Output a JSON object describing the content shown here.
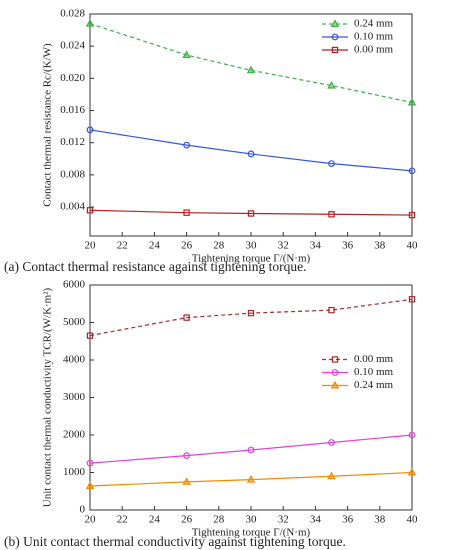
{
  "chart_data": [
    {
      "type": "line",
      "caption": "(a) Contact thermal resistance against tightening torque.",
      "xlabel": "Tightening torque Γ/(N·m)",
      "ylabel": "Contact thermal resistance Rc/(K/W)",
      "x": [
        20,
        26,
        30,
        35,
        40
      ],
      "xlim": [
        20,
        40
      ],
      "xticks": [
        20,
        22,
        24,
        26,
        28,
        30,
        32,
        34,
        36,
        38,
        40
      ],
      "ylim": [
        0.0004,
        0.028
      ],
      "yticks": [
        0.004,
        0.008,
        0.012,
        0.016,
        {
          "value": 0.02,
          "label": "0.020"
        },
        0.024,
        0.028
      ],
      "legend": "upper right",
      "series": [
        {
          "name": "0.24 mm",
          "color": "#3cb043",
          "dashed": true,
          "marker": "triangle",
          "values": [
            0.0268,
            0.0229,
            0.021,
            0.0191,
            0.017
          ]
        },
        {
          "name": "0.10 mm",
          "color": "#3355dd",
          "dashed": false,
          "marker": "circle",
          "values": [
            0.0136,
            0.0117,
            0.0106,
            0.0094,
            0.0085
          ]
        },
        {
          "name": "0.00 mm",
          "color": "#b22222",
          "dashed": false,
          "marker": "square",
          "values": [
            0.0036,
            0.0033,
            0.0032,
            0.0031,
            0.003
          ]
        }
      ]
    },
    {
      "type": "line",
      "caption": "(b) Unit contact thermal conductivity against tightening torque.",
      "xlabel": "Tightening torque Γ/(N·m)",
      "ylabel": "Unit contact thermal conductivity TCR/(W/K·m²)",
      "x": [
        20,
        26,
        30,
        35,
        40
      ],
      "xlim": [
        20,
        40
      ],
      "xticks": [
        20,
        22,
        24,
        26,
        28,
        30,
        32,
        34,
        36,
        38,
        40
      ],
      "ylim": [
        0,
        6000
      ],
      "yticks": [
        0,
        1000,
        2000,
        3000,
        4000,
        5000,
        6000
      ],
      "legend": "center right",
      "series": [
        {
          "name": "0.00 mm",
          "color": "#a52a2a",
          "dashed": true,
          "marker": "square",
          "values": [
            4650,
            5130,
            5250,
            5330,
            5620
          ]
        },
        {
          "name": "0.10 mm",
          "color": "#e040e0",
          "dashed": false,
          "marker": "circle",
          "values": [
            1250,
            1450,
            1600,
            1800,
            2000
          ]
        },
        {
          "name": "0.24 mm",
          "color": "#f08c00",
          "dashed": false,
          "marker": "triangle",
          "values": [
            640,
            750,
            810,
            900,
            1000
          ]
        }
      ]
    }
  ]
}
